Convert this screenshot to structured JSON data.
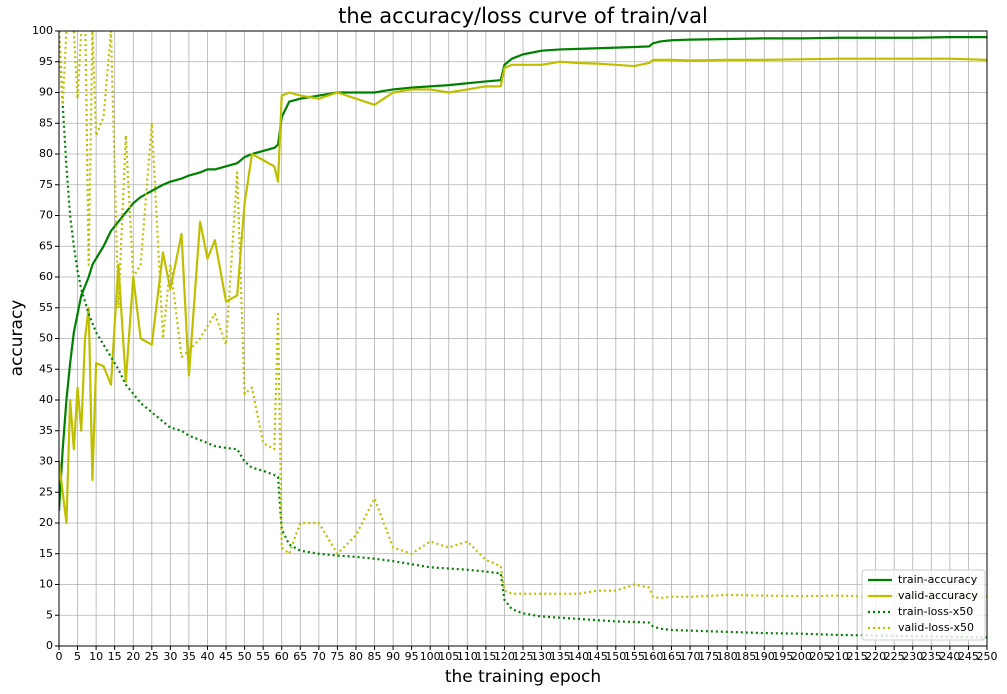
{
  "chart_data": {
    "type": "line",
    "title": "the accuracy/loss curve of train/val",
    "xlabel": "the training epoch",
    "ylabel": "accuracy",
    "x": [
      0,
      1,
      2,
      3,
      4,
      5,
      6,
      7,
      8,
      9,
      10,
      12,
      14,
      16,
      18,
      20,
      22,
      25,
      28,
      30,
      33,
      35,
      38,
      40,
      42,
      45,
      48,
      50,
      52,
      55,
      58,
      59,
      60,
      62,
      65,
      70,
      75,
      80,
      85,
      90,
      95,
      100,
      105,
      110,
      115,
      119,
      120,
      122,
      125,
      130,
      135,
      140,
      145,
      150,
      155,
      159,
      160,
      162,
      165,
      170,
      180,
      190,
      200,
      210,
      220,
      230,
      240,
      250
    ],
    "series": [
      {
        "name": "train-accuracy",
        "color": "#008000",
        "linestyle": "solid",
        "values": [
          22,
          32,
          40,
          46,
          51,
          54,
          57,
          58.5,
          60,
          62,
          63,
          65,
          67.5,
          69,
          70.5,
          72,
          73,
          74,
          75,
          75.5,
          76,
          76.5,
          77,
          77.5,
          77.5,
          78,
          78.5,
          79.5,
          80,
          80.5,
          81,
          81.5,
          86,
          88.5,
          89,
          89.5,
          90,
          90,
          90,
          90.5,
          90.8,
          91,
          91.2,
          91.5,
          91.8,
          92,
          94.5,
          95.5,
          96.2,
          96.8,
          97,
          97.1,
          97.2,
          97.3,
          97.4,
          97.5,
          98,
          98.3,
          98.5,
          98.6,
          98.7,
          98.8,
          98.8,
          98.9,
          98.9,
          98.9,
          99,
          99
        ]
      },
      {
        "name": "valid-accuracy",
        "color": "#bfbf00",
        "linestyle": "solid",
        "values": [
          30,
          25,
          20,
          40,
          32,
          42,
          35,
          50,
          55,
          27,
          46,
          45.5,
          42.5,
          62,
          43,
          60,
          50,
          49,
          64,
          58,
          67,
          44,
          69,
          63,
          66,
          56,
          57,
          72,
          80,
          79,
          78,
          75.5,
          89.5,
          90,
          89.5,
          89,
          90,
          89,
          88,
          90,
          90.5,
          90.5,
          90,
          90.5,
          91,
          91,
          94,
          94.5,
          94.5,
          94.5,
          95,
          94.8,
          94.7,
          94.5,
          94.3,
          94.8,
          95.3,
          95.3,
          95.3,
          95.2,
          95.3,
          95.3,
          95.4,
          95.5,
          95.5,
          95.5,
          95.5,
          95.3
        ]
      },
      {
        "name": "train-loss-x50",
        "color": "#008000",
        "linestyle": "dotted",
        "values": [
          100,
          88,
          78,
          70,
          65,
          61,
          58,
          56,
          54,
          52.5,
          51,
          49,
          47,
          45,
          42.5,
          41,
          39.5,
          38,
          36.5,
          35.5,
          35,
          34.2,
          33.5,
          33,
          32.5,
          32.2,
          32,
          30,
          29,
          28.5,
          27.8,
          27.5,
          19,
          16.5,
          15.5,
          15,
          14.7,
          14.5,
          14.2,
          13.8,
          13.3,
          12.8,
          12.6,
          12.4,
          12.1,
          11.8,
          7.5,
          6,
          5.3,
          4.8,
          4.6,
          4.4,
          4.2,
          4,
          3.9,
          3.8,
          3.2,
          2.8,
          2.6,
          2.5,
          2.3,
          2.1,
          2,
          1.8,
          1.7,
          1.6,
          1.5,
          1.4
        ]
      },
      {
        "name": "valid-loss-x50",
        "color": "#bfbf00",
        "linestyle": "dotted",
        "values": [
          100,
          88,
          100,
          105,
          100,
          89,
          100,
          105,
          62,
          100,
          83,
          86,
          100,
          55,
          83,
          60,
          62,
          85,
          50,
          62,
          47,
          48,
          50,
          52,
          54,
          49,
          77,
          41,
          42,
          33,
          32,
          54,
          16,
          15,
          20,
          20,
          15,
          18,
          24,
          16,
          15,
          17,
          16,
          17,
          14,
          13,
          9,
          8.5,
          8.5,
          8.5,
          8.5,
          8.5,
          9,
          9,
          10,
          9.5,
          8,
          7.8,
          8,
          8,
          8.3,
          8.2,
          8.1,
          8.2,
          8,
          8,
          8.2,
          8
        ]
      }
    ],
    "xlim": [
      0,
      250
    ],
    "ylim": [
      0,
      100
    ],
    "xticks": [
      0,
      5,
      10,
      15,
      20,
      25,
      30,
      35,
      40,
      45,
      50,
      55,
      60,
      65,
      70,
      75,
      80,
      85,
      90,
      95,
      100,
      105,
      110,
      115,
      120,
      125,
      130,
      135,
      140,
      145,
      150,
      155,
      160,
      165,
      170,
      175,
      180,
      185,
      190,
      195,
      200,
      205,
      210,
      215,
      220,
      225,
      230,
      235,
      240,
      245,
      250
    ],
    "yticks": [
      0,
      5,
      10,
      15,
      20,
      25,
      30,
      35,
      40,
      45,
      50,
      55,
      60,
      65,
      70,
      75,
      80,
      85,
      90,
      95,
      100
    ],
    "grid": true,
    "legend": "lower right"
  }
}
